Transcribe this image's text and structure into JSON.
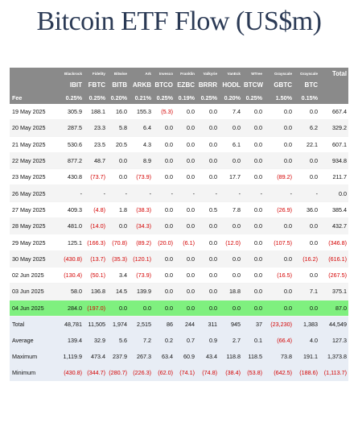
{
  "title": "Bitcoin ETF Flow (US$m)",
  "chart_data": {
    "type": "table",
    "title": "Bitcoin ETF Flow (US$m)",
    "issuers": [
      "Blackrock",
      "Fidelity",
      "Bitwise",
      "Ark",
      "Invesco",
      "Franklin",
      "Valkyrie",
      "VanEck",
      "WTree",
      "Grayscale",
      "Grayscale"
    ],
    "total_label": "Total",
    "tickers": [
      "IBIT",
      "FBTC",
      "BITB",
      "ARKB",
      "BTCO",
      "EZBC",
      "BRRR",
      "HODL",
      "BTCW",
      "GBTC",
      "BTC"
    ],
    "fee_label": "Fee",
    "fees": [
      "0.25%",
      "0.25%",
      "0.20%",
      "0.21%",
      "0.25%",
      "0.19%",
      "0.25%",
      "0.20%",
      "0.25%",
      "1.50%",
      "0.15%"
    ],
    "rows": [
      {
        "date": "19 May 2025",
        "values": [
          "305.9",
          "188.1",
          "16.0",
          "155.3",
          "(5.3)",
          "0.0",
          "0.0",
          "7.4",
          "0.0",
          "0.0",
          "0.0"
        ],
        "total": "667.4"
      },
      {
        "date": "20 May 2025",
        "values": [
          "287.5",
          "23.3",
          "5.8",
          "6.4",
          "0.0",
          "0.0",
          "0.0",
          "0.0",
          "0.0",
          "0.0",
          "6.2"
        ],
        "total": "329.2"
      },
      {
        "date": "21 May 2025",
        "values": [
          "530.6",
          "23.5",
          "20.5",
          "4.3",
          "0.0",
          "0.0",
          "0.0",
          "6.1",
          "0.0",
          "0.0",
          "22.1"
        ],
        "total": "607.1"
      },
      {
        "date": "22 May 2025",
        "values": [
          "877.2",
          "48.7",
          "0.0",
          "8.9",
          "0.0",
          "0.0",
          "0.0",
          "0.0",
          "0.0",
          "0.0",
          "0.0"
        ],
        "total": "934.8"
      },
      {
        "date": "23 May 2025",
        "values": [
          "430.8",
          "(73.7)",
          "0.0",
          "(73.9)",
          "0.0",
          "0.0",
          "0.0",
          "17.7",
          "0.0",
          "(89.2)",
          "0.0"
        ],
        "total": "211.7"
      },
      {
        "date": "26 May 2025",
        "values": [
          "-",
          "-",
          "-",
          "-",
          "-",
          "-",
          "-",
          "-",
          "-",
          "-",
          "-"
        ],
        "total": "0.0"
      },
      {
        "date": "27 May 2025",
        "values": [
          "409.3",
          "(4.8)",
          "1.8",
          "(38.3)",
          "0.0",
          "0.0",
          "0.5",
          "7.8",
          "0.0",
          "(26.9)",
          "36.0"
        ],
        "total": "385.4"
      },
      {
        "date": "28 May 2025",
        "values": [
          "481.0",
          "(14.0)",
          "0.0",
          "(34.3)",
          "0.0",
          "0.0",
          "0.0",
          "0.0",
          "0.0",
          "0.0",
          "0.0"
        ],
        "total": "432.7"
      },
      {
        "date": "29 May 2025",
        "values": [
          "125.1",
          "(166.3)",
          "(70.8)",
          "(89.2)",
          "(20.0)",
          "(6.1)",
          "0.0",
          "(12.0)",
          "0.0",
          "(107.5)",
          "0.0"
        ],
        "total": "(346.8)"
      },
      {
        "date": "30 May 2025",
        "values": [
          "(430.8)",
          "(13.7)",
          "(35.3)",
          "(120.1)",
          "0.0",
          "0.0",
          "0.0",
          "0.0",
          "0.0",
          "0.0",
          "(16.2)"
        ],
        "total": "(616.1)"
      },
      {
        "date": "02 Jun 2025",
        "values": [
          "(130.4)",
          "(50.1)",
          "3.4",
          "(73.9)",
          "0.0",
          "0.0",
          "0.0",
          "0.0",
          "0.0",
          "(16.5)",
          "0.0"
        ],
        "total": "(267.5)"
      },
      {
        "date": "03 Jun 2025",
        "values": [
          "58.0",
          "136.8",
          "14.5",
          "139.9",
          "0.0",
          "0.0",
          "0.0",
          "18.8",
          "0.0",
          "0.0",
          "7.1"
        ],
        "total": "375.1"
      },
      {
        "date": "04 Jun 2025",
        "values": [
          "284.0",
          "(197.0)",
          "0.0",
          "0.0",
          "0.0",
          "0.0",
          "0.0",
          "0.0",
          "0.0",
          "0.0",
          "0.0"
        ],
        "total": "87.0",
        "highlight": true
      }
    ],
    "stats": [
      {
        "label": "Total",
        "values": [
          "48,781",
          "11,505",
          "1,974",
          "2,515",
          "86",
          "244",
          "311",
          "945",
          "37",
          "(23,230)",
          "1,383"
        ],
        "total": "44,549"
      },
      {
        "label": "Average",
        "values": [
          "139.4",
          "32.9",
          "5.6",
          "7.2",
          "0.2",
          "0.7",
          "0.9",
          "2.7",
          "0.1",
          "(66.4)",
          "4.0"
        ],
        "total": "127.3"
      },
      {
        "label": "Maximum",
        "values": [
          "1,119.9",
          "473.4",
          "237.9",
          "267.3",
          "63.4",
          "60.9",
          "43.4",
          "118.8",
          "118.5",
          "73.8",
          "191.1"
        ],
        "total": "1,373.8"
      },
      {
        "label": "Minimum",
        "values": [
          "(430.8)",
          "(344.7)",
          "(280.7)",
          "(226.3)",
          "(62.0)",
          "(74.1)",
          "(74.8)",
          "(38.4)",
          "(53.8)",
          "(642.5)",
          "(188.6)"
        ],
        "total": "(1,113.7)"
      }
    ],
    "colors": {
      "header_bg": "#8a8a8a",
      "header_text": "#ffffff",
      "negative": "#d40000",
      "highlight_row": "#7ff07f",
      "stats_bg": "#e8edf5",
      "title": "#2b3a55"
    }
  }
}
